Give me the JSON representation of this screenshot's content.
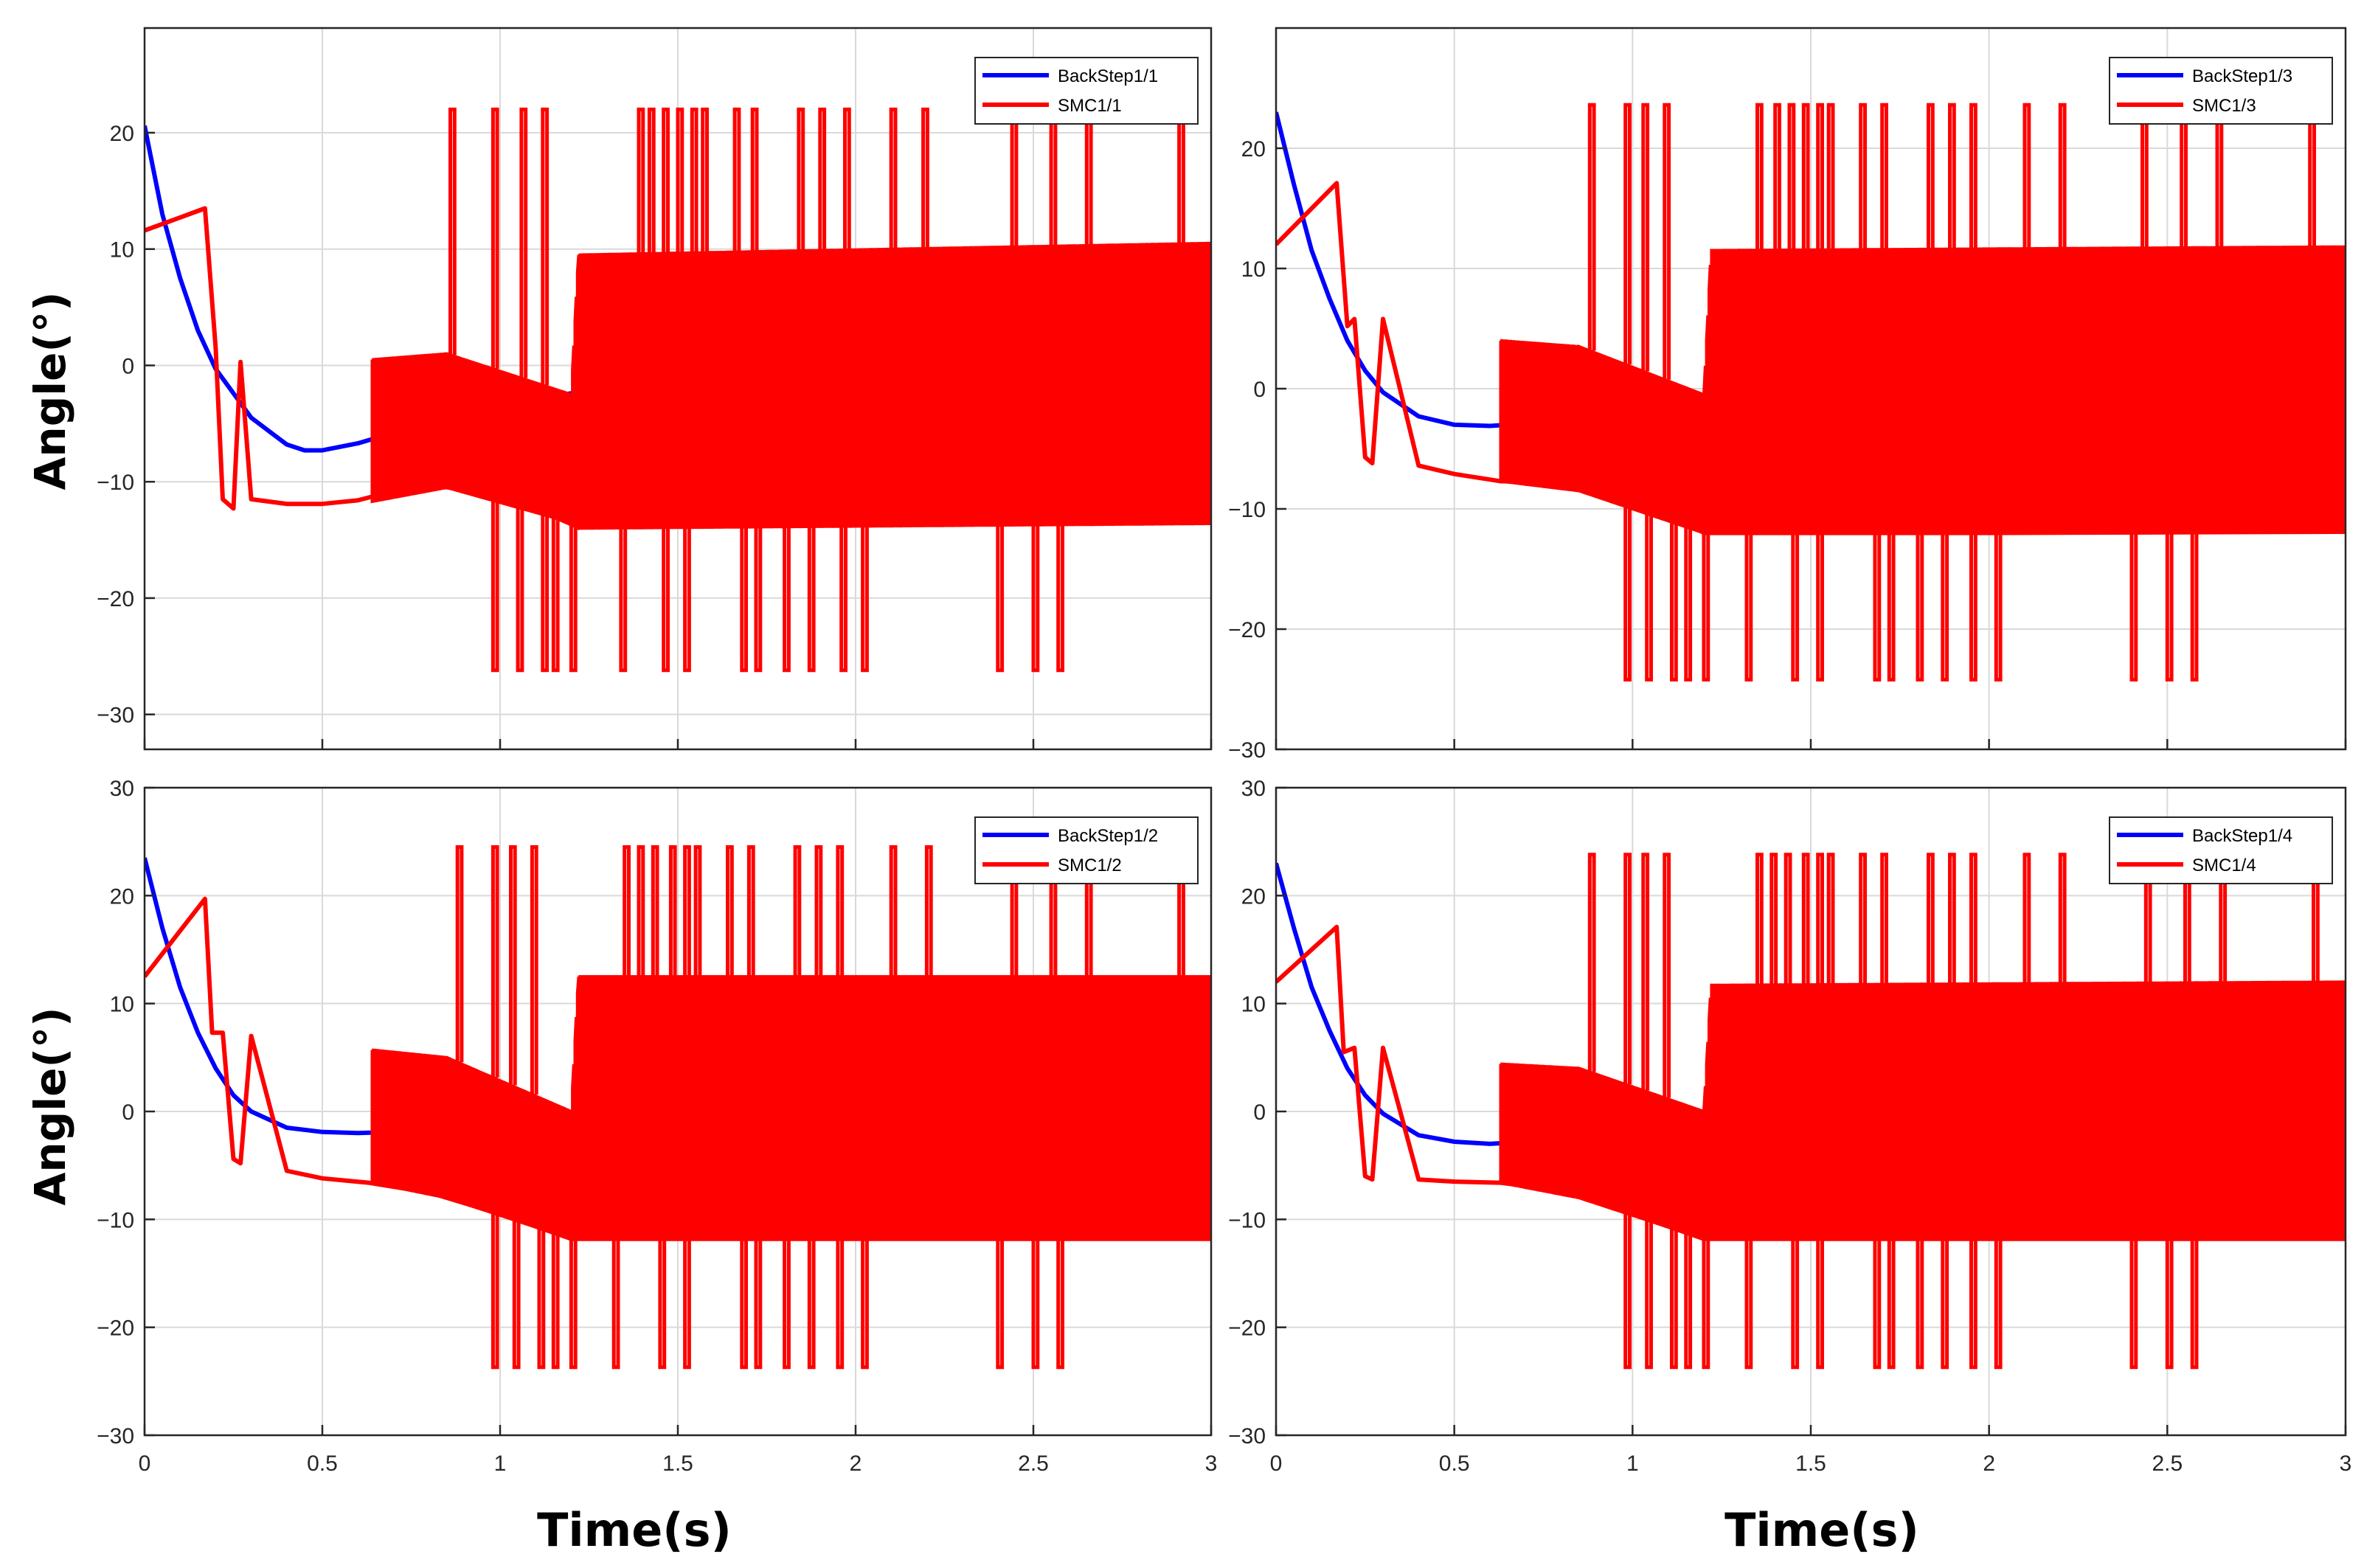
{
  "figure": {
    "ylabel_top": "Angle(°)",
    "ylabel_bottom": "Angle(°)",
    "xlabel_left": "Time(s)",
    "xlabel_right": "Time(s)"
  },
  "colors": {
    "backstep": "#0000ff",
    "smc": "#ff0000",
    "grid": "#d9d9d9",
    "axis": "#262626"
  },
  "chart_data": [
    {
      "type": "line",
      "position": "top-left",
      "grid": true,
      "legend": "top-right",
      "xlim": [
        0,
        3
      ],
      "ylim": [
        -33,
        29
      ],
      "xticks": [
        0,
        0.5,
        1,
        1.5,
        2,
        2.5,
        3
      ],
      "xticklabels": [
        "",
        "",
        "",
        "",
        "",
        "",
        ""
      ],
      "yticks": [
        -30,
        -20,
        -10,
        0,
        10,
        20
      ],
      "yticklabels": [
        "−30",
        "−20",
        "−10",
        "0",
        "10",
        "20"
      ],
      "series": [
        {
          "name": "BackStep1/1",
          "color": "#0000ff",
          "x": [
            0,
            0.05,
            0.1,
            0.15,
            0.2,
            0.3,
            0.4,
            0.45,
            0.5,
            0.6,
            0.7,
            0.8,
            0.9,
            1.0,
            1.1,
            1.2,
            1.3,
            1.5,
            1.8,
            2.0,
            2.5,
            3.0
          ],
          "y": [
            20.6,
            13,
            7.5,
            3,
            -0.3,
            -4.5,
            -6.8,
            -7.3,
            -7.3,
            -6.7,
            -5.8,
            -4.8,
            -4,
            -3.3,
            -2.8,
            -2.4,
            -2.1,
            -1.8,
            -1.6,
            -1.6,
            -1.5,
            -1.5
          ]
        },
        {
          "name": "SMC1/1",
          "color": "#ff0000",
          "x": [
            0,
            0.17,
            0.2,
            0.22,
            0.25,
            0.27,
            0.3,
            0.4,
            0.5,
            0.6,
            0.7,
            0.8,
            1.0,
            1.22,
            1.5,
            2.0,
            3.0
          ],
          "y": [
            11.6,
            13.5,
            1.5,
            -11.5,
            -12.3,
            0.3,
            -11.5,
            -11.9,
            -11.9,
            -11.6,
            -10.8,
            -10.3,
            -11,
            -13.9,
            -13.8,
            -13.6,
            -13.4
          ],
          "band": {
            "x": [
              0.64,
              0.85,
              1.2,
              1.22,
              3.0
            ],
            "upper": [
              0.5,
              1,
              -2.5,
              9.5,
              10.5
            ],
            "lower": [
              -11.7,
              -10.5,
              -13.5,
              -14,
              -13.6
            ]
          },
          "spikes_high": [
            0.86,
            0.98,
            1.06,
            1.12,
            1.39,
            1.42,
            1.46,
            1.5,
            1.54,
            1.57,
            1.66,
            1.71,
            1.84,
            1.9,
            1.97,
            2.1,
            2.19,
            2.44,
            2.55,
            2.65,
            2.91
          ],
          "spikes_high_value": 22,
          "spikes_low": [
            0.98,
            1.05,
            1.12,
            1.15,
            1.2,
            1.34,
            1.46,
            1.52,
            1.68,
            1.72,
            1.8,
            1.87,
            1.96,
            2.02,
            2.4,
            2.5,
            2.57
          ],
          "spikes_low_value": -26.2
        }
      ]
    },
    {
      "type": "line",
      "position": "top-right",
      "grid": true,
      "legend": "top-right",
      "xlim": [
        0,
        3
      ],
      "ylim": [
        -30,
        30
      ],
      "xticks": [
        0,
        0.5,
        1,
        1.5,
        2,
        2.5,
        3
      ],
      "xticklabels": [
        "",
        "",
        "",
        "",
        "",
        "",
        ""
      ],
      "yticks": [
        -30,
        -20,
        -10,
        0,
        10,
        20
      ],
      "yticklabels": [
        "−30",
        "−20",
        "−10",
        "0",
        "10",
        "20"
      ],
      "series": [
        {
          "name": "BackStep1/3",
          "color": "#0000ff",
          "x": [
            0,
            0.05,
            0.1,
            0.15,
            0.2,
            0.25,
            0.3,
            0.4,
            0.5,
            0.6,
            0.7,
            0.8,
            0.9,
            1.0,
            1.2,
            1.5,
            2.0,
            3.0
          ],
          "y": [
            23,
            17,
            11.5,
            7.5,
            4,
            1.5,
            -0.3,
            -2.3,
            -3,
            -3.1,
            -2.9,
            -2.6,
            -2.2,
            -1.7,
            -1,
            -0.5,
            -0.3,
            -0.3
          ]
        },
        {
          "name": "SMC1/3",
          "color": "#ff0000",
          "x": [
            0,
            0.17,
            0.2,
            0.22,
            0.25,
            0.27,
            0.3,
            0.4,
            0.5,
            0.63,
            0.8,
            1.0,
            1.2,
            1.5,
            2.0,
            3.0
          ],
          "y": [
            12,
            17.1,
            5.2,
            5.8,
            -5.7,
            -6.2,
            5.8,
            -6.4,
            -7.1,
            -7.7,
            -7.8,
            -8.5,
            -12,
            -12,
            -12,
            -11.9
          ],
          "band": {
            "x": [
              0.63,
              0.85,
              1.2,
              1.22,
              3.0
            ],
            "upper": [
              4,
              3.5,
              -0.5,
              11.5,
              11.8
            ],
            "lower": [
              -7.7,
              -8.5,
              -12,
              -12,
              -11.9
            ]
          },
          "spikes_high": [
            0.88,
            0.98,
            1.03,
            1.09,
            1.35,
            1.4,
            1.44,
            1.48,
            1.52,
            1.55,
            1.64,
            1.7,
            1.83,
            1.89,
            1.95,
            2.1,
            2.2,
            2.43,
            2.54,
            2.64,
            2.9
          ],
          "spikes_high_value": 23.6,
          "spikes_low": [
            0.98,
            1.04,
            1.11,
            1.15,
            1.2,
            1.32,
            1.45,
            1.52,
            1.68,
            1.72,
            1.8,
            1.87,
            1.95,
            2.02,
            2.4,
            2.5,
            2.57
          ],
          "spikes_low_value": -24.2
        }
      ]
    },
    {
      "type": "line",
      "position": "bottom-left",
      "grid": true,
      "legend": "top-right",
      "xlim": [
        0,
        3
      ],
      "ylim": [
        -30,
        30
      ],
      "xticks": [
        0,
        0.5,
        1,
        1.5,
        2,
        2.5,
        3
      ],
      "xticklabels": [
        "0",
        "0.5",
        "1",
        "1.5",
        "2",
        "2.5",
        "3"
      ],
      "yticks": [
        -30,
        -20,
        -10,
        0,
        10,
        20,
        30
      ],
      "yticklabels": [
        "−30",
        "−20",
        "−10",
        "0",
        "10",
        "20",
        "30"
      ],
      "series": [
        {
          "name": "BackStep1/2",
          "color": "#0000ff",
          "x": [
            0,
            0.05,
            0.1,
            0.15,
            0.2,
            0.25,
            0.3,
            0.4,
            0.5,
            0.6,
            0.7,
            0.8,
            0.9,
            1.0,
            1.2,
            1.5,
            2.0,
            3.0
          ],
          "y": [
            23.5,
            17,
            11.5,
            7.3,
            4,
            1.5,
            0,
            -1.5,
            -1.9,
            -2,
            -1.9,
            -1.7,
            -1.4,
            -1,
            -0.5,
            -0.2,
            0,
            0
          ]
        },
        {
          "name": "SMC1/2",
          "color": "#ff0000",
          "x": [
            0,
            0.17,
            0.19,
            0.22,
            0.25,
            0.27,
            0.3,
            0.4,
            0.5,
            0.63,
            0.8,
            1.0,
            1.2,
            1.5,
            2.0,
            3.0
          ],
          "y": [
            12.5,
            19.7,
            7.3,
            7.3,
            -4.4,
            -4.8,
            7,
            -5.5,
            -6.2,
            -6.6,
            -7.5,
            -9.5,
            -11.8,
            -11.8,
            -11.8,
            -11.8
          ],
          "band": {
            "x": [
              0.64,
              0.85,
              1.2,
              1.22,
              3.0
            ],
            "upper": [
              5.7,
              5,
              0,
              12.5,
              12.5
            ],
            "lower": [
              -6.6,
              -8,
              -11.8,
              -11.8,
              -11.8
            ]
          },
          "spikes_high": [
            0.88,
            0.98,
            1.03,
            1.09,
            1.35,
            1.39,
            1.43,
            1.48,
            1.52,
            1.55,
            1.64,
            1.7,
            1.83,
            1.89,
            1.95,
            2.1,
            2.2,
            2.44,
            2.55,
            2.65,
            2.91
          ],
          "spikes_high_value": 24.5,
          "spikes_low": [
            0.98,
            1.04,
            1.11,
            1.15,
            1.2,
            1.32,
            1.45,
            1.52,
            1.68,
            1.72,
            1.8,
            1.87,
            1.95,
            2.02,
            2.4,
            2.5,
            2.57
          ],
          "spikes_low_value": -23.7
        }
      ]
    },
    {
      "type": "line",
      "position": "bottom-right",
      "grid": true,
      "legend": "top-right",
      "xlim": [
        0,
        3
      ],
      "ylim": [
        -30,
        30
      ],
      "xticks": [
        0,
        0.5,
        1,
        1.5,
        2,
        2.5,
        3
      ],
      "xticklabels": [
        "0",
        "0.5",
        "1",
        "1.5",
        "2",
        "2.5",
        "3"
      ],
      "yticks": [
        -30,
        -20,
        -10,
        0,
        10,
        20,
        30
      ],
      "yticklabels": [
        "−30",
        "−20",
        "−10",
        "0",
        "10",
        "20",
        "30"
      ],
      "series": [
        {
          "name": "BackStep1/4",
          "color": "#0000ff",
          "x": [
            0,
            0.05,
            0.1,
            0.15,
            0.2,
            0.25,
            0.3,
            0.4,
            0.5,
            0.6,
            0.7,
            0.8,
            0.9,
            1.0,
            1.2,
            1.5,
            2.0,
            3.0
          ],
          "y": [
            23,
            17,
            11.5,
            7.5,
            4,
            1.5,
            -0.2,
            -2.2,
            -2.8,
            -3,
            -2.8,
            -2.4,
            -2,
            -1.5,
            -0.8,
            -0.3,
            0,
            0
          ]
        },
        {
          "name": "SMC1/4",
          "color": "#ff0000",
          "x": [
            0,
            0.17,
            0.19,
            0.22,
            0.25,
            0.27,
            0.3,
            0.4,
            0.5,
            0.63,
            0.8,
            1.0,
            1.2,
            1.5,
            2.0,
            3.0
          ],
          "y": [
            12,
            17.1,
            5.5,
            5.9,
            -6,
            -6.3,
            5.9,
            -6.3,
            -6.5,
            -6.6,
            -7.3,
            -9.5,
            -11.8,
            -11.8,
            -11.8,
            -11.8
          ],
          "band": {
            "x": [
              0.63,
              0.85,
              1.2,
              1.22,
              3.0
            ],
            "upper": [
              4.4,
              4,
              0,
              11.7,
              12
            ],
            "lower": [
              -6.6,
              -8,
              -11.8,
              -11.8,
              -11.8
            ]
          },
          "spikes_high": [
            0.88,
            0.98,
            1.03,
            1.09,
            1.35,
            1.39,
            1.43,
            1.48,
            1.52,
            1.55,
            1.64,
            1.7,
            1.83,
            1.89,
            1.95,
            2.1,
            2.2,
            2.44,
            2.55,
            2.65,
            2.91
          ],
          "spikes_high_value": 23.8,
          "spikes_low": [
            0.98,
            1.04,
            1.11,
            1.15,
            1.2,
            1.32,
            1.45,
            1.52,
            1.68,
            1.72,
            1.8,
            1.87,
            1.95,
            2.02,
            2.4,
            2.5,
            2.57
          ],
          "spikes_low_value": -23.7
        }
      ]
    }
  ]
}
